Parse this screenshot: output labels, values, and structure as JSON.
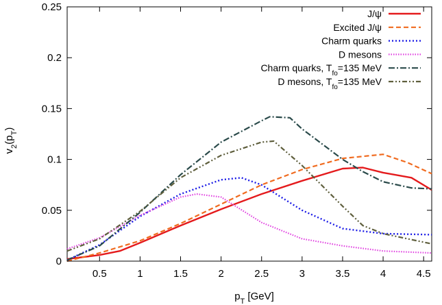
{
  "chart_data": {
    "type": "line",
    "title": "",
    "xlabel": {
      "base": "p",
      "sub": "T",
      "rest": " [GeV]"
    },
    "ylabel": {
      "base": "v",
      "sub1": "2",
      "mid": "(p",
      "sub2": "T",
      "end": ")"
    },
    "xlim": [
      0.1,
      4.6
    ],
    "ylim": [
      0,
      0.25
    ],
    "x_ticks": [
      0.5,
      1,
      1.5,
      2,
      2.5,
      3,
      3.5,
      4,
      4.5
    ],
    "x_tick_labels": [
      "0.5",
      "1",
      "1.5",
      "2",
      "2.5",
      "3",
      "3.5",
      "4",
      "4.5"
    ],
    "y_ticks": [
      0,
      0.05,
      0.1,
      0.15,
      0.2,
      0.25
    ],
    "y_tick_labels": [
      "0",
      "0.05",
      "0.1",
      "0.15",
      "0.2",
      "0.25"
    ],
    "grid": false,
    "legend_position": "top-right",
    "series": [
      {
        "name": "J/ψ",
        "color": "#e41a1c",
        "dash": "solid",
        "x": [
          0.1,
          0.5,
          0.75,
          1.0,
          1.5,
          2.0,
          2.5,
          3.0,
          3.5,
          3.75,
          4.0,
          4.35,
          4.6
        ],
        "y": [
          0.002,
          0.006,
          0.01,
          0.018,
          0.035,
          0.051,
          0.066,
          0.079,
          0.091,
          0.092,
          0.087,
          0.082,
          0.07
        ]
      },
      {
        "name": "Excited J/ψ",
        "color": "#f06a1e",
        "dash": "dashed",
        "x": [
          0.1,
          0.5,
          1.0,
          1.5,
          2.0,
          2.5,
          3.0,
          3.5,
          4.0,
          4.3,
          4.6
        ],
        "y": [
          0.0,
          0.008,
          0.02,
          0.037,
          0.056,
          0.075,
          0.09,
          0.101,
          0.105,
          0.097,
          0.086
        ]
      },
      {
        "name": "Charm quarks",
        "color": "#1a1ae6",
        "dash": "dotted",
        "x": [
          0.1,
          0.5,
          1.0,
          1.5,
          2.0,
          2.25,
          2.5,
          3.0,
          3.5,
          4.0,
          4.6
        ],
        "y": [
          0.001,
          0.016,
          0.044,
          0.066,
          0.08,
          0.082,
          0.075,
          0.05,
          0.032,
          0.027,
          0.026
        ]
      },
      {
        "name": "D mesons",
        "color": "#e040e0",
        "dash": "fine-dotted",
        "x": [
          0.1,
          0.5,
          1.0,
          1.5,
          1.7,
          2.0,
          2.5,
          3.0,
          3.5,
          4.0,
          4.6
        ],
        "y": [
          0.012,
          0.023,
          0.045,
          0.063,
          0.066,
          0.063,
          0.038,
          0.022,
          0.015,
          0.01,
          0.008
        ]
      },
      {
        "name": "Charm quarks, T",
        "name_sub": "fo",
        "name_rest": "=135 MeV",
        "color": "#2a4a4a",
        "dash": "dash-dot",
        "x": [
          0.1,
          0.5,
          1.0,
          1.5,
          2.0,
          2.5,
          2.6,
          2.85,
          3.0,
          3.5,
          3.75,
          4.0,
          4.35,
          4.6
        ],
        "y": [
          0.001,
          0.015,
          0.048,
          0.085,
          0.117,
          0.138,
          0.142,
          0.141,
          0.13,
          0.1,
          0.088,
          0.078,
          0.072,
          0.071
        ]
      },
      {
        "name": "D mesons, T",
        "name_sub": "fo",
        "name_rest": "=135 MeV",
        "color": "#5e5e3c",
        "dash": "dash-dot-dot",
        "x": [
          0.1,
          0.5,
          1.0,
          1.5,
          2.0,
          2.5,
          2.65,
          3.0,
          3.5,
          3.75,
          4.0,
          4.6
        ],
        "y": [
          0.01,
          0.022,
          0.049,
          0.082,
          0.104,
          0.117,
          0.118,
          0.094,
          0.054,
          0.035,
          0.027,
          0.017
        ]
      }
    ]
  }
}
